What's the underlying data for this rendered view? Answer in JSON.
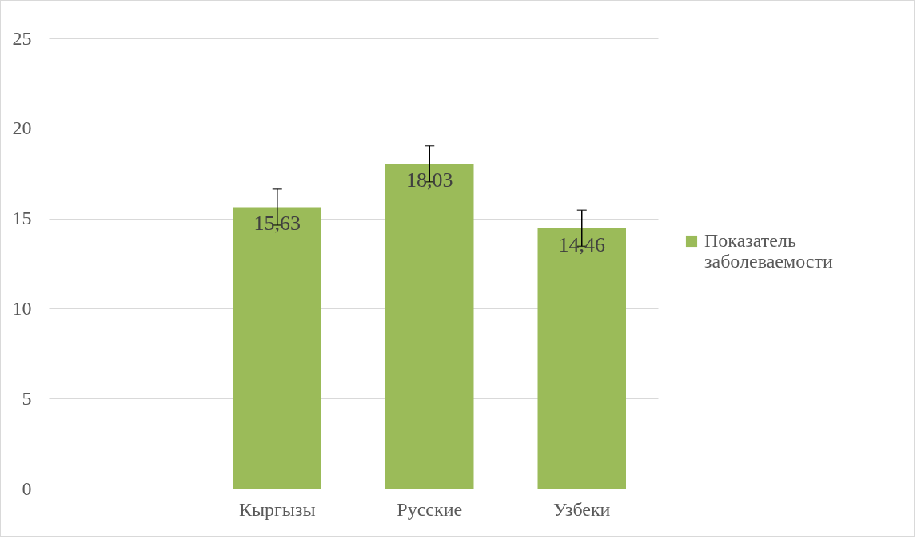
{
  "chart_data": {
    "type": "bar",
    "categories": [
      null,
      "Кыргызы",
      "Русские",
      "Узбеки"
    ],
    "series": [
      {
        "name": "Показатель заболеваемости",
        "color": "#9bbb59",
        "values": [
          null,
          15.63,
          18.03,
          14.46
        ],
        "errors": [
          null,
          1,
          1,
          1
        ],
        "value_labels": [
          null,
          "15,63",
          "18,03",
          "14,46"
        ]
      }
    ],
    "ylim": [
      0,
      25
    ],
    "yticks": [
      0,
      5,
      10,
      15,
      20,
      25
    ],
    "grid": "y",
    "legend": "right"
  }
}
